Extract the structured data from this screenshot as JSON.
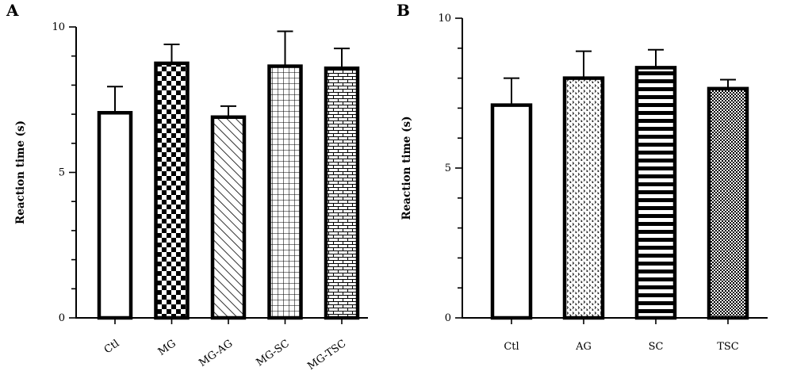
{
  "colors": {
    "ink": "#000000",
    "bar_fill": "#ffffff"
  },
  "chart_data": [
    {
      "type": "bar",
      "panel": "A",
      "ylabel": "Reaction time (s)",
      "xlabel": "",
      "ylim": [
        0,
        10
      ],
      "yticks": [
        0,
        5,
        10
      ],
      "categories": [
        "Ctl",
        "MG",
        "MG-AG",
        "MG-SC",
        "MG-TSC"
      ],
      "values": [
        7.05,
        8.75,
        6.9,
        8.65,
        8.58
      ],
      "errors": [
        0.9,
        0.65,
        0.38,
        1.2,
        0.68
      ],
      "patterns": [
        "none",
        "checker",
        "diagonal",
        "grid",
        "brick"
      ],
      "rotated_labels": true
    },
    {
      "type": "bar",
      "panel": "B",
      "ylabel": "Reaction time (s)",
      "xlabel": "",
      "ylim": [
        0,
        10
      ],
      "yticks": [
        0,
        5,
        10
      ],
      "categories": [
        "Ctl",
        "AG",
        "SC",
        "TSC"
      ],
      "values": [
        7.1,
        8.0,
        8.35,
        7.65
      ],
      "errors": [
        0.9,
        0.9,
        0.6,
        0.3
      ],
      "patterns": [
        "none",
        "dots",
        "hstripes",
        "finecheck"
      ],
      "rotated_labels": false
    }
  ]
}
